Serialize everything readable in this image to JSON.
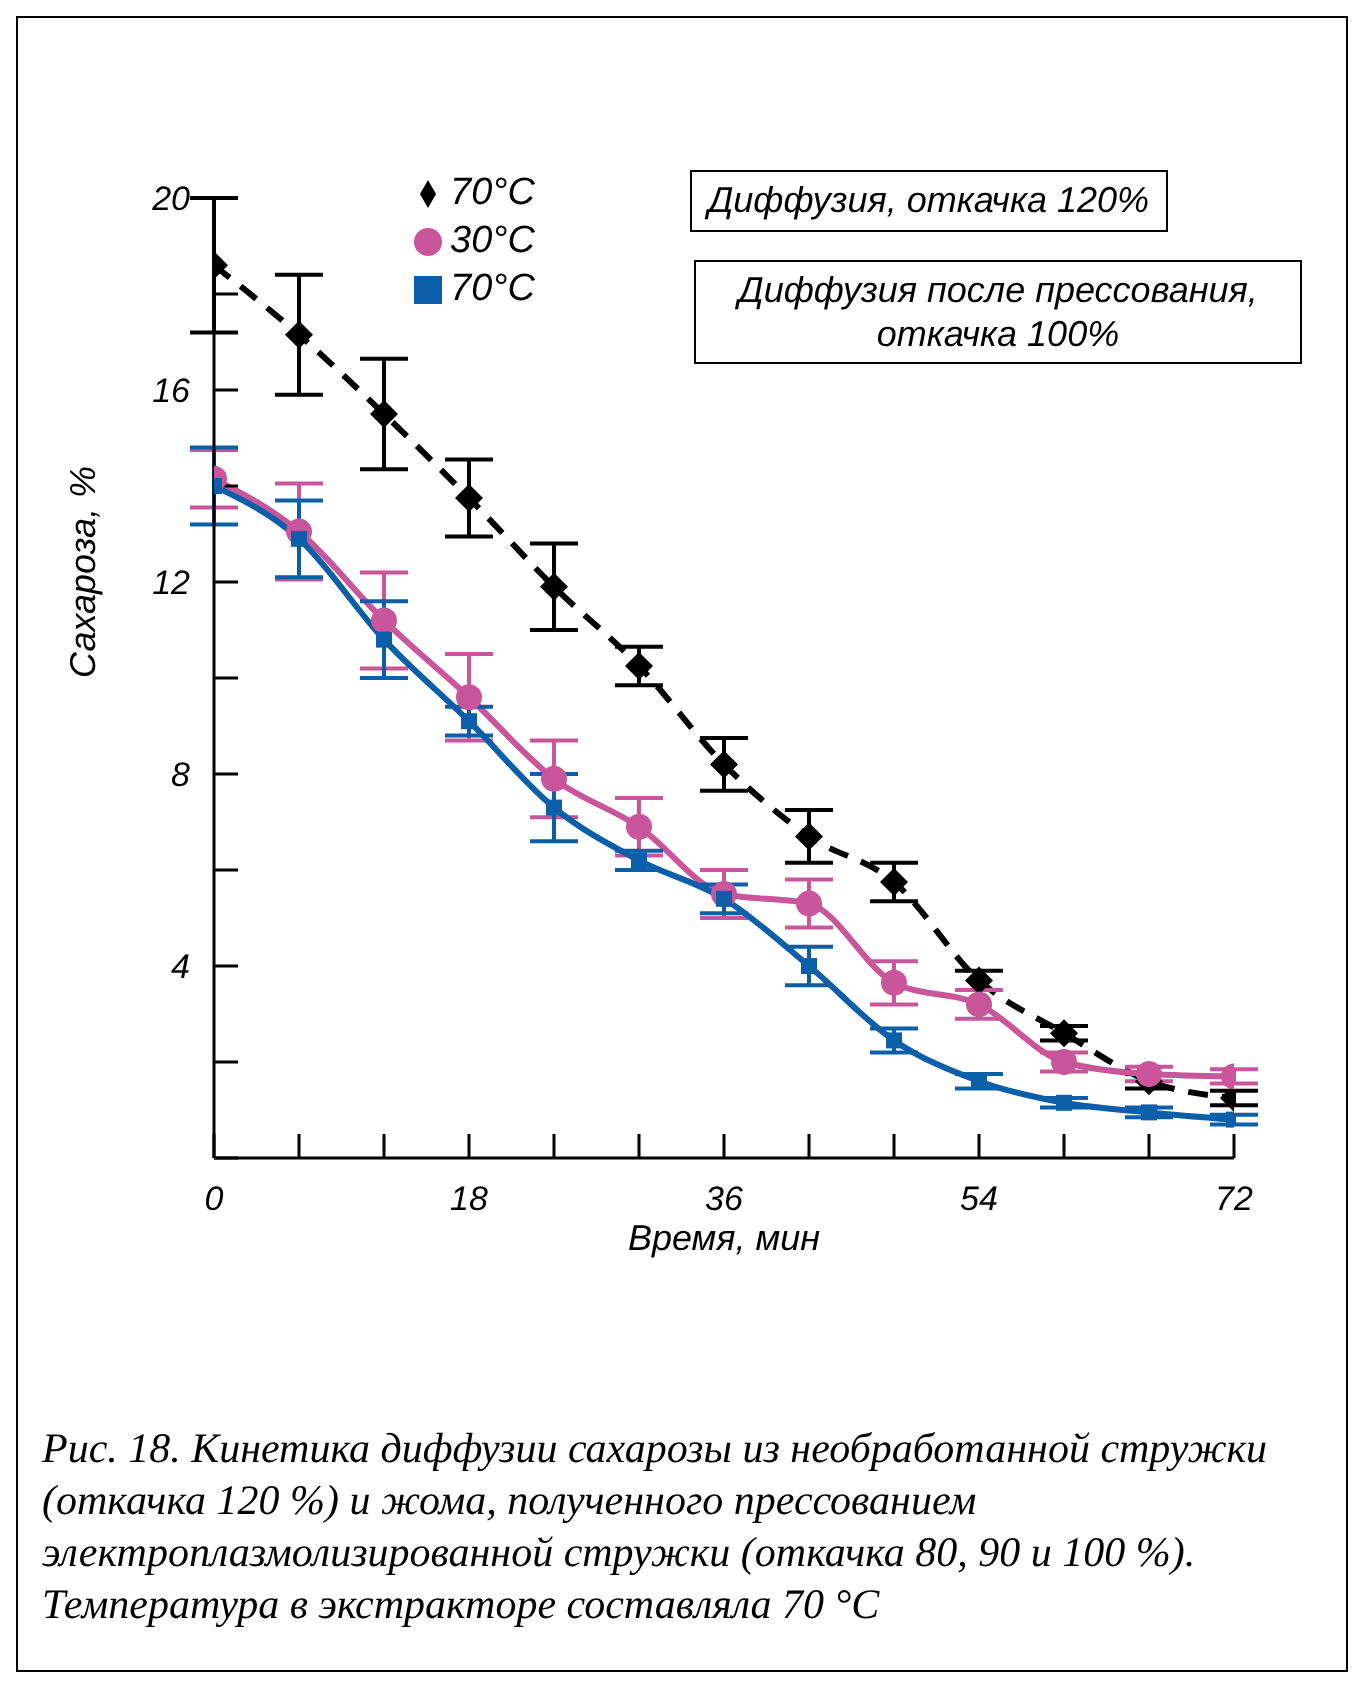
{
  "chart_data": {
    "type": "line",
    "xlabel": "Время, мин",
    "ylabel": "Сахароза, %",
    "x": [
      0,
      6,
      12,
      18,
      24,
      30,
      36,
      42,
      48,
      54,
      60,
      66,
      72
    ],
    "series": [
      {
        "name": "70°C",
        "color": "#000000",
        "marker": "diamond",
        "line_style": "dashed",
        "values": [
          18.6,
          17.15,
          15.5,
          13.75,
          11.9,
          10.25,
          8.2,
          6.7,
          5.75,
          3.7,
          2.6,
          1.6,
          1.25
        ],
        "errors": [
          1.4,
          1.25,
          1.15,
          0.8,
          0.9,
          0.4,
          0.55,
          0.55,
          0.4,
          0.2,
          0.15,
          0.15,
          0.15
        ]
      },
      {
        "name": "30°C",
        "color": "#c9559a",
        "marker": "circle",
        "line_style": "solid",
        "values": [
          14.15,
          13.05,
          11.2,
          9.6,
          7.9,
          6.9,
          5.5,
          5.3,
          3.65,
          3.2,
          2.0,
          1.75,
          1.7
        ],
        "errors": [
          0.6,
          1.0,
          1.0,
          0.9,
          0.8,
          0.6,
          0.5,
          0.5,
          0.45,
          0.3,
          0.2,
          0.15,
          0.15
        ]
      },
      {
        "name": "70°C",
        "color": "#0b5fa8",
        "marker": "square",
        "line_style": "solid",
        "values": [
          14.0,
          12.9,
          10.8,
          9.1,
          7.3,
          6.2,
          5.4,
          4.0,
          2.45,
          1.6,
          1.15,
          0.95,
          0.8
        ],
        "errors": [
          0.8,
          0.8,
          0.8,
          0.3,
          0.7,
          0.2,
          0.3,
          0.4,
          0.25,
          0.15,
          0.1,
          0.1,
          0.1
        ]
      }
    ],
    "xlim": [
      0,
      72
    ],
    "ylim": [
      0,
      20
    ],
    "xticks": [
      0,
      {
        "value": 6,
        "label": null
      },
      {
        "value": 12,
        "label": null
      },
      18,
      {
        "value": 24,
        "label": null
      },
      {
        "value": 30,
        "label": null
      },
      36,
      {
        "value": 42,
        "label": null
      },
      {
        "value": 48,
        "label": null
      },
      54,
      {
        "value": 60,
        "label": null
      },
      {
        "value": 66,
        "label": null
      },
      72
    ],
    "yticks": [
      {
        "value": 0,
        "label": null
      },
      {
        "value": 2,
        "label": null
      },
      4,
      {
        "value": 6,
        "label": null
      },
      8,
      {
        "value": 10,
        "label": null
      },
      12,
      {
        "value": 14,
        "label": null
      },
      16,
      {
        "value": 18,
        "label": null
      },
      20
    ],
    "legend": "top",
    "annotations": [
      "Диффузия, откачка 120%",
      "Диффузия после прессования, откачка 100%",
      "Рис. 18. Кинетика диффузии сахарозы из необработанной стружки (откачка 120 %) и жома, полученного прессованием электроплазмолизированной стружки (откачка 80, 90 и 100 %). Температура в экстракторе составляла 70 °С"
    ]
  }
}
